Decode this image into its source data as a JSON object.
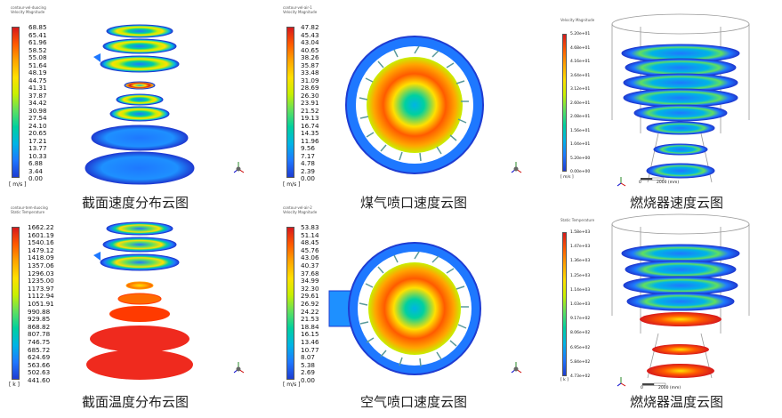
{
  "panels": [
    {
      "id": "section-velocity",
      "caption": "截面速度分布云图",
      "header": [
        "contour-vel-duocing",
        "Velocity Magnitude"
      ],
      "unit": "[ m/s ]",
      "ticks": [
        "68.85",
        "65.41",
        "61.96",
        "58.52",
        "55.08",
        "51.64",
        "48.19",
        "44.75",
        "41.31",
        "37.87",
        "34.42",
        "30.98",
        "27.54",
        "24.10",
        "20.65",
        "17.21",
        "13.77",
        "10.33",
        "6.88",
        "3.44",
        "0.00"
      ]
    },
    {
      "id": "gas-nozzle-velocity",
      "caption": "煤气喷口速度云图",
      "header": [
        "contour-vel-air-1",
        "Velocity Magnitude"
      ],
      "unit": "[ m/s ]",
      "ticks": [
        "47.82",
        "45.43",
        "43.04",
        "40.65",
        "38.26",
        "35.87",
        "33.48",
        "31.09",
        "28.69",
        "26.30",
        "23.91",
        "21.52",
        "19.13",
        "16.74",
        "14.35",
        "11.96",
        "9.56",
        "7.17",
        "4.78",
        "2.39",
        "0.00"
      ]
    },
    {
      "id": "burner-velocity",
      "caption": "燃烧器速度云图",
      "header": [
        "Velocity Magnitude"
      ],
      "unit": "[ m/s ]",
      "ticks": [
        "5.20e+01",
        "4.68e+01",
        "4.16e+01",
        "3.64e+01",
        "3.12e+01",
        "2.60e+01",
        "2.08e+01",
        "1.56e+01",
        "1.04e+01",
        "5.20e+00",
        "0.00e+00"
      ],
      "scale": [
        "0",
        "2000 (mm)"
      ]
    },
    {
      "id": "section-temperature",
      "caption": "截面温度分布云图",
      "header": [
        "contour-tem-duocing",
        "Static Temperature"
      ],
      "unit": "[ k ]",
      "ticks": [
        "1662.22",
        "1601.19",
        "1540.16",
        "1479.12",
        "1418.09",
        "1357.06",
        "1296.03",
        "1235.00",
        "1173.97",
        "1112.94",
        "1051.91",
        "990.88",
        "929.85",
        "868.82",
        "807.78",
        "746.75",
        "685.72",
        "624.69",
        "563.66",
        "502.63",
        "441.60"
      ]
    },
    {
      "id": "air-nozzle-velocity",
      "caption": "空气喷口速度云图",
      "header": [
        "contour-vel-air-2",
        "Velocity Magnitude"
      ],
      "unit": "[ m/s ]",
      "ticks": [
        "53.83",
        "51.14",
        "48.45",
        "45.76",
        "43.06",
        "40.37",
        "37.68",
        "34.99",
        "32.30",
        "29.61",
        "26.92",
        "24.22",
        "21.53",
        "18.84",
        "16.15",
        "13.46",
        "10.77",
        "8.07",
        "5.38",
        "2.69",
        "0.00"
      ]
    },
    {
      "id": "burner-temperature",
      "caption": "燃烧器温度云图",
      "header": [
        "Static Temperature"
      ],
      "unit": "[ k ]",
      "ticks": [
        "1.58e+03",
        "1.47e+03",
        "1.36e+03",
        "1.25e+03",
        "1.14e+03",
        "1.03e+03",
        "9.17e+02",
        "8.06e+02",
        "6.95e+02",
        "5.84e+02",
        "4.73e+02"
      ],
      "scale": [
        "0",
        "2000 (mm)"
      ]
    }
  ],
  "colors": {
    "rainbow": [
      "#d7191c",
      "#ff5a00",
      "#ffa500",
      "#ffe000",
      "#c8f000",
      "#5fe05f",
      "#00d0a0",
      "#00b4e6",
      "#1e78ff",
      "#1e3cd2"
    ]
  }
}
